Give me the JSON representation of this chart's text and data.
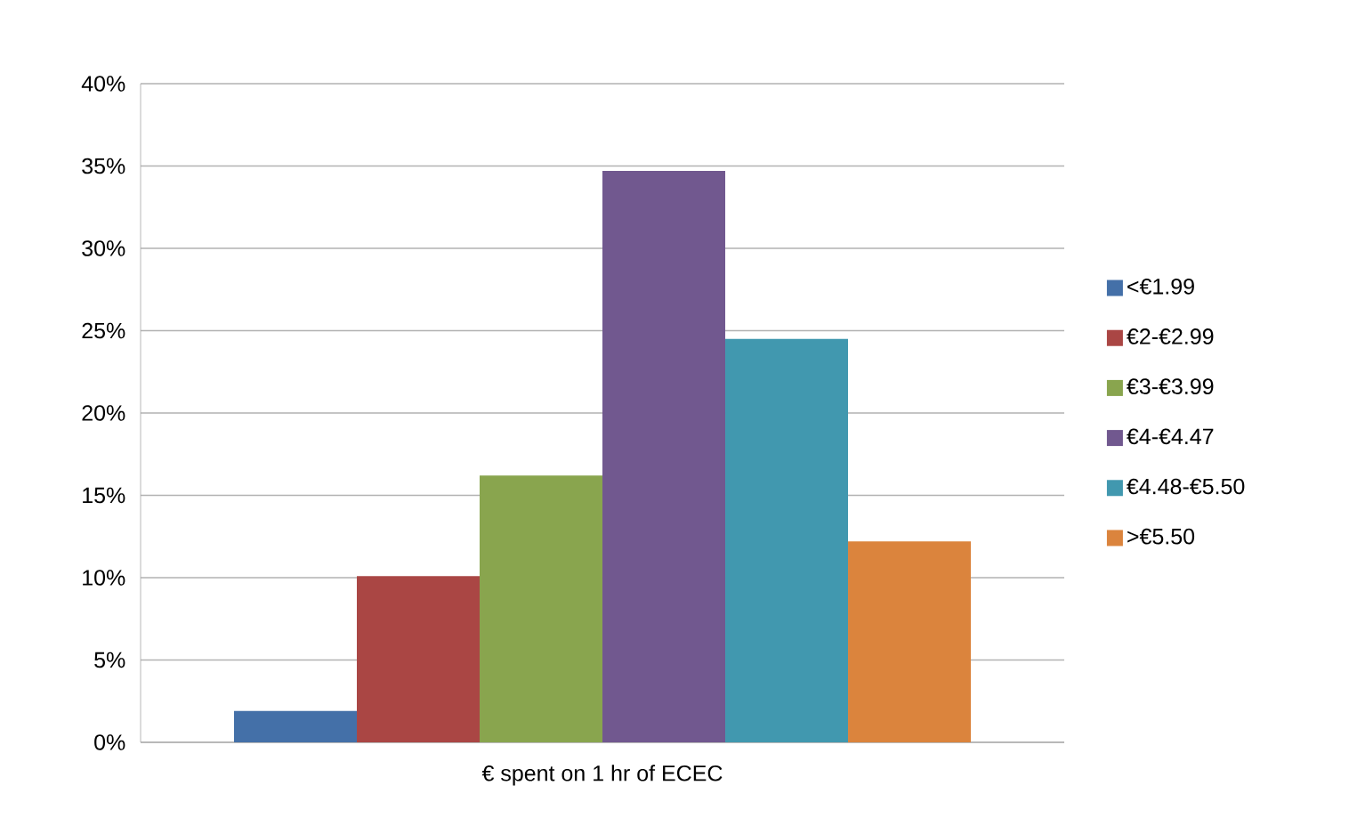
{
  "chart_data": {
    "type": "bar",
    "categories": [
      "€ spent on 1 hr of ECEC"
    ],
    "series": [
      {
        "name": "<€1.99",
        "color": "#4470a8",
        "values": [
          1.9
        ]
      },
      {
        "name": "€2-€2.99",
        "color": "#aa4644",
        "values": [
          10.1
        ]
      },
      {
        "name": "€3-€3.99",
        "color": "#89a54e",
        "values": [
          16.2
        ]
      },
      {
        "name": "€4-€4.47",
        "color": "#71588f",
        "values": [
          34.7
        ]
      },
      {
        "name": "€4.48-€5.50",
        "color": "#4198af",
        "values": [
          24.5
        ]
      },
      {
        "name": ">€5.50",
        "color": "#db843d",
        "values": [
          12.2
        ]
      }
    ],
    "ylim": [
      0,
      40
    ],
    "yticks": [
      {
        "value": 0,
        "label": "0%"
      },
      {
        "value": 5,
        "label": "5%"
      },
      {
        "value": 10,
        "label": "10%"
      },
      {
        "value": 15,
        "label": "15%"
      },
      {
        "value": 20,
        "label": "20%"
      },
      {
        "value": 25,
        "label": "25%"
      },
      {
        "value": 30,
        "label": "30%"
      },
      {
        "value": 35,
        "label": "35%"
      },
      {
        "value": 40,
        "label": "40%"
      }
    ],
    "grid": "y",
    "legend": "right"
  }
}
